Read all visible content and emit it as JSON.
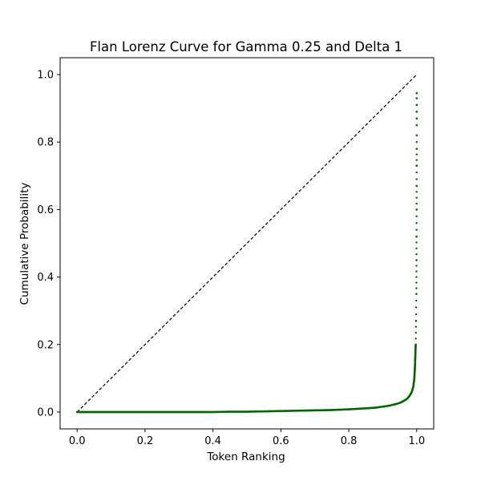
{
  "chart_data": {
    "type": "scatter",
    "title": "Flan Lorenz Curve for Gamma 0.25 and Delta 1",
    "xlabel": "Token Ranking",
    "ylabel": "Cumulative Probability",
    "xlim": [
      -0.05,
      1.05
    ],
    "ylim": [
      -0.05,
      1.05
    ],
    "xticks": [
      0.0,
      0.2,
      0.4,
      0.6,
      0.8,
      1.0
    ],
    "xtick_labels": [
      "0.0",
      "0.2",
      "0.4",
      "0.6",
      "0.8",
      "1.0"
    ],
    "yticks": [
      0.0,
      0.2,
      0.4,
      0.6,
      0.8,
      1.0
    ],
    "ytick_labels": [
      "0.0",
      "0.2",
      "0.4",
      "0.6",
      "0.8",
      "1.0"
    ],
    "grid": false,
    "legend": "none",
    "reference_line": {
      "style": "dashed",
      "color": "#000000",
      "points": [
        [
          0.0,
          0.0
        ],
        [
          1.0,
          1.0
        ]
      ]
    },
    "series": [
      {
        "color": "#006400",
        "x": [
          0.0,
          0.05,
          0.1,
          0.15,
          0.2,
          0.25,
          0.3,
          0.35,
          0.4,
          0.45,
          0.5,
          0.55,
          0.6,
          0.65,
          0.7,
          0.75,
          0.8,
          0.85,
          0.88,
          0.9,
          0.92,
          0.94,
          0.95,
          0.96,
          0.97,
          0.975,
          0.98,
          0.985,
          0.99,
          0.993,
          0.995,
          0.997,
          0.998,
          0.999,
          0.9993,
          0.9995,
          0.9997,
          0.9998,
          0.9999,
          1.0,
          1.0,
          1.0,
          1.0,
          1.0,
          1.0,
          1.0,
          1.0
        ],
        "y": [
          0.0,
          0.0,
          0.0,
          0.0,
          0.0,
          0.0,
          0.0,
          0.0,
          0.0,
          0.001,
          0.001,
          0.002,
          0.003,
          0.004,
          0.005,
          0.006,
          0.008,
          0.011,
          0.013,
          0.016,
          0.019,
          0.024,
          0.027,
          0.032,
          0.038,
          0.043,
          0.05,
          0.058,
          0.075,
          0.1,
          0.14,
          0.2,
          0.27,
          0.35,
          0.45,
          0.52,
          0.6,
          0.67,
          0.73,
          0.78,
          0.82,
          0.85,
          0.87,
          0.89,
          0.91,
          0.93,
          0.945
        ]
      }
    ]
  }
}
